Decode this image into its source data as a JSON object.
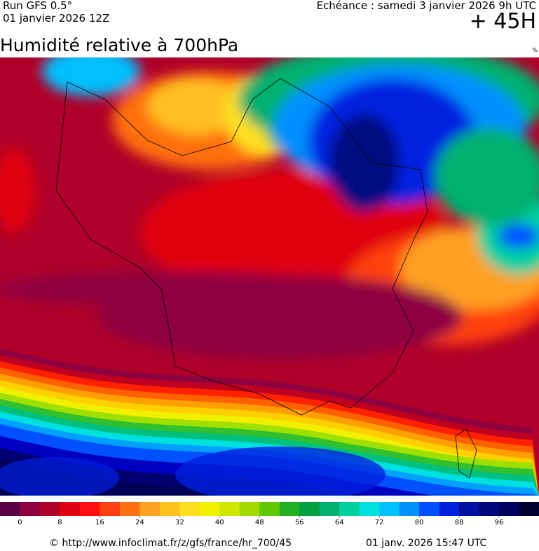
{
  "header": {
    "run": "Run GFS 0.5°",
    "date": "01 janvier 2026 12Z",
    "echeance": "Echéance : samedi 3 janvier 2026 9h UTC",
    "horizon": "+ 45H",
    "title": "Humidité relative à 700hPa",
    "unit": "%"
  },
  "colorbar": {
    "range": [
      -4,
      104
    ],
    "colors": [
      "#5a0048",
      "#8e0040",
      "#b0002a",
      "#e00010",
      "#ff1010",
      "#ff4010",
      "#ff7010",
      "#ffa020",
      "#ffc020",
      "#ffe020",
      "#f0f000",
      "#d0e800",
      "#a0d800",
      "#60c800",
      "#20b020",
      "#00a040",
      "#00b070",
      "#00d0a0",
      "#00e0e0",
      "#00c0ff",
      "#0090ff",
      "#0050ff",
      "#0020e0",
      "#0010a0",
      "#000880",
      "#000060",
      "#000030"
    ],
    "ticks": [
      0,
      8,
      16,
      24,
      32,
      40,
      48,
      56,
      64,
      72,
      80,
      88,
      96
    ]
  },
  "footer": {
    "url": "© http://www.infoclimat.fr/z/gfs/france/hr_700/45",
    "timestamp": "01 janv. 2026 15:47 UTC"
  }
}
